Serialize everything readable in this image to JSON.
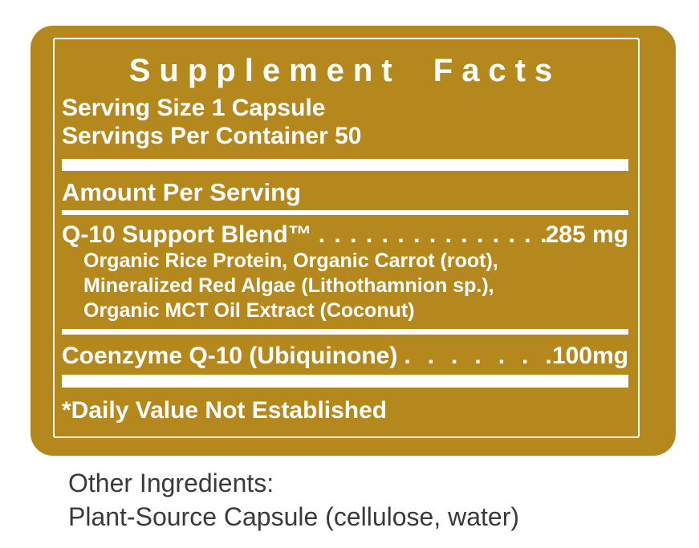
{
  "label": {
    "title": "Supplement Facts",
    "serving_size": "Serving Size 1 Capsule",
    "servings_per_container": "Servings Per Container 50",
    "amount_per_serving": "Amount Per Serving",
    "blend": {
      "name": "Q-10 Support Blend™",
      "dots": "...............",
      "amount": "285 mg",
      "components": [
        "Organic Rice Protein, Organic Carrot (root),",
        "Mineralized Red Algae (Lithothamnion sp.),",
        "Organic MCT Oil Extract (Coconut)"
      ]
    },
    "coenzyme": {
      "name": "Coenzyme Q-10 (Ubiquinone)",
      "dots": "........",
      "amount": "100mg"
    },
    "footnote": "*Daily Value Not Established",
    "colors": {
      "panel_gold": "#B5881E",
      "panel_text": "#FFFFFF",
      "body_text": "#3A3A3C"
    }
  },
  "other_ingredients": {
    "heading": "Other Ingredients:",
    "body": "Plant-Source Capsule (cellulose, water)"
  }
}
